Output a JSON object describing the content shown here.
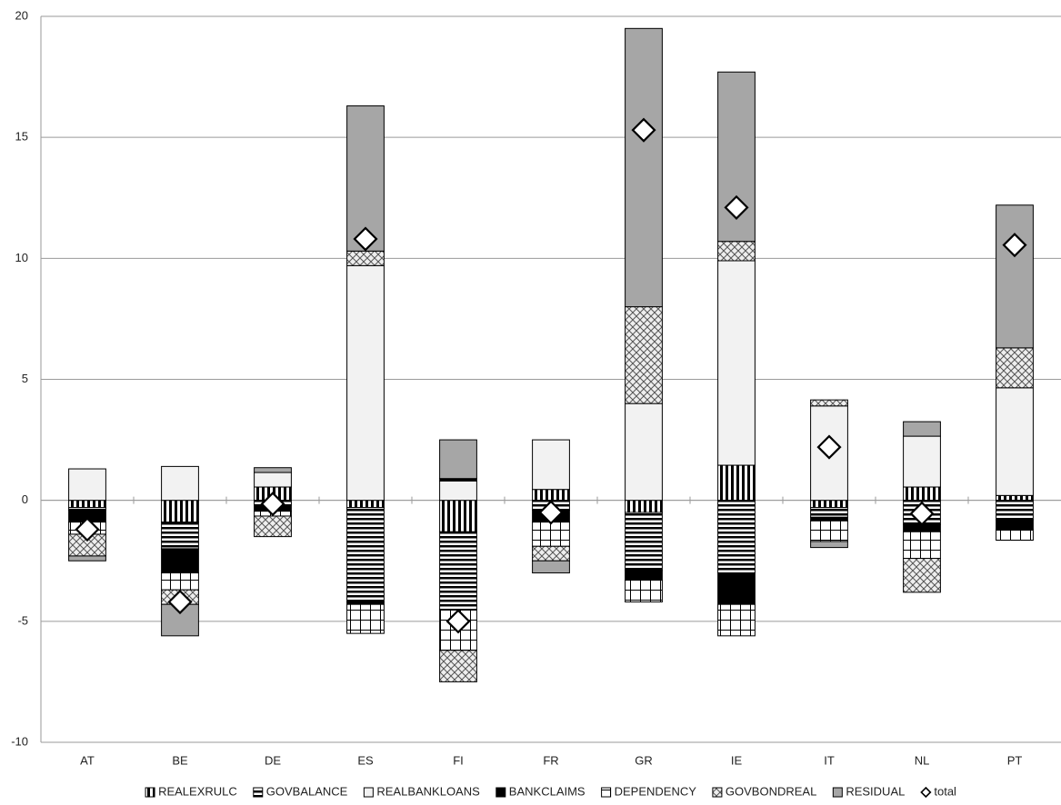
{
  "chart_data": {
    "type": "bar",
    "stacked": true,
    "categories": [
      "AT",
      "BE",
      "DE",
      "ES",
      "FI",
      "FR",
      "GR",
      "IE",
      "IT",
      "NL",
      "PT"
    ],
    "series": [
      {
        "name": "REALEXRULC",
        "color": "#000000",
        "pattern": "vertical-stripes",
        "values": [
          -0.3,
          -0.9,
          0.55,
          -0.3,
          -1.3,
          0.45,
          -0.5,
          1.45,
          -0.3,
          0.55,
          0.2
        ]
      },
      {
        "name": "GOVBALANCE",
        "color": "#000000",
        "pattern": "horizontal-stripes",
        "values": [
          -0.1,
          -1.1,
          -0.2,
          -3.9,
          -3.2,
          -0.4,
          -2.4,
          -3.0,
          -0.4,
          -1.0,
          -0.8
        ]
      },
      {
        "name": "REALBANKLOANS",
        "color": "#f2f2f2",
        "pattern": "solid",
        "values": [
          1.3,
          1.4,
          0.6,
          9.7,
          0.8,
          2.05,
          4.0,
          8.45,
          3.9,
          2.1,
          4.45
        ]
      },
      {
        "name": "BANKCLAIMS",
        "color": "#000000",
        "pattern": "solid",
        "values": [
          -0.5,
          -1.0,
          -0.25,
          -0.1,
          0.1,
          -0.5,
          -0.4,
          -1.3,
          -0.15,
          -0.3,
          -0.4
        ]
      },
      {
        "name": "DEPENDENCY",
        "color": "#000000",
        "pattern": "grid",
        "values": [
          -0.5,
          -0.7,
          -0.2,
          -1.2,
          -1.7,
          -1.0,
          -0.9,
          -1.3,
          -0.85,
          -1.1,
          -0.45
        ]
      },
      {
        "name": "GOVBONDREAL",
        "color": "#555555",
        "pattern": "crosshatch",
        "values": [
          -0.9,
          -0.6,
          -0.85,
          0.6,
          -1.3,
          -0.6,
          4.0,
          0.8,
          0.25,
          -1.4,
          1.65
        ]
      },
      {
        "name": "RESIDUAL",
        "color": "#a6a6a6",
        "pattern": "solid",
        "values": [
          -0.2,
          -1.3,
          0.2,
          6.0,
          1.6,
          -0.5,
          11.5,
          7.0,
          -0.25,
          0.6,
          5.9
        ]
      },
      {
        "name": "total",
        "type": "scatter",
        "marker": "diamond",
        "color": "#000000",
        "values": [
          -1.2,
          -4.2,
          -0.15,
          10.8,
          -5.0,
          -0.5,
          15.3,
          12.1,
          2.2,
          -0.55,
          10.55
        ]
      }
    ],
    "ylim": [
      -10,
      20
    ],
    "yticks": [
      -10,
      -5,
      0,
      5,
      10,
      15,
      20
    ],
    "grid": true,
    "legend": "bottom"
  }
}
